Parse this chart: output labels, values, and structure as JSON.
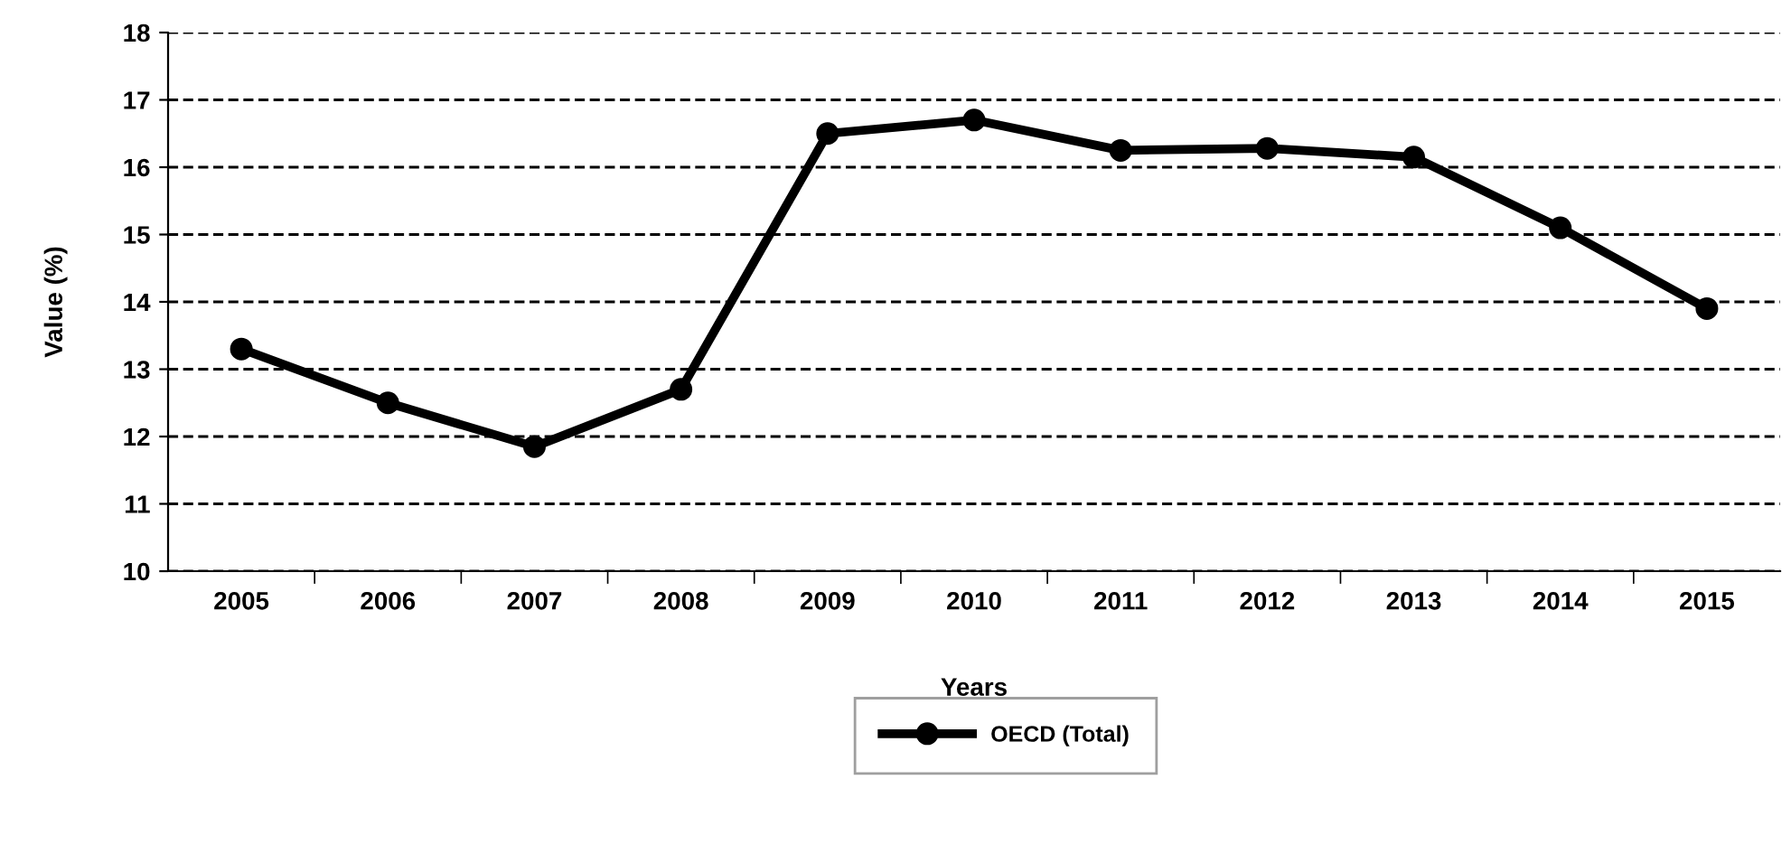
{
  "chart_data": {
    "type": "line",
    "xlabel": "Years",
    "ylabel": "Value (%)",
    "categories": [
      "2005",
      "2006",
      "2007",
      "2008",
      "2009",
      "2010",
      "2011",
      "2012",
      "2013",
      "2014",
      "2015"
    ],
    "series": [
      {
        "name": "OECD (Total)",
        "color": "#000000",
        "values": [
          13.3,
          12.5,
          11.85,
          12.7,
          16.5,
          16.7,
          16.25,
          16.28,
          16.15,
          15.1,
          13.9
        ]
      }
    ],
    "ylim": [
      10,
      18
    ],
    "yticks": [
      10,
      11,
      12,
      13,
      14,
      15,
      16,
      17,
      18
    ],
    "grid": "y",
    "legend": "bottom",
    "marker": "circle",
    "line_style": "solid"
  }
}
